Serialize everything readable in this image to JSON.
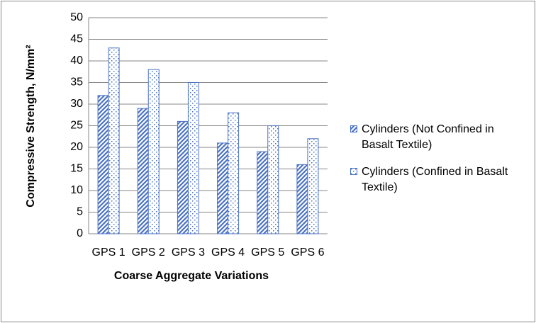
{
  "chart_data": {
    "type": "bar",
    "x_label": "Coarse Aggregate Variations",
    "y_label": "Compressive Strength, N/mm²",
    "categories": [
      "GPS 1",
      "GPS 2",
      "GPS 3",
      "GPS 4",
      "GPS 5",
      "GPS 6"
    ],
    "series": [
      {
        "name": "Cylinders (Not Confined in Basalt Textile)",
        "color": "#4a72c4",
        "pattern": "stripes",
        "values": [
          32,
          29,
          26,
          21,
          19,
          16
        ]
      },
      {
        "name": "Cylinders (Confined in Basalt Textile)",
        "color": "#4a72c4",
        "pattern": "dots",
        "values": [
          43,
          38,
          35,
          28,
          25,
          22
        ]
      }
    ],
    "ylim": [
      0,
      50
    ],
    "yticks": [
      0,
      5,
      10,
      15,
      20,
      25,
      30,
      35,
      40,
      45,
      50
    ],
    "grid": true,
    "legend": "right"
  }
}
